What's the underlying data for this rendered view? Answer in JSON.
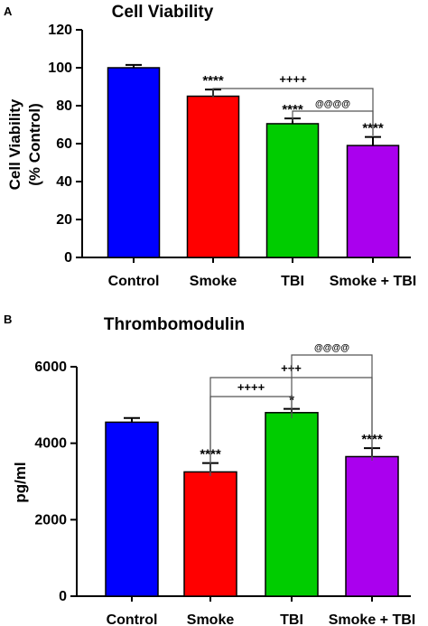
{
  "chart_data": [
    {
      "panel": "A",
      "type": "bar",
      "title": "Cell Viability",
      "ylabel": [
        "Cell Viability",
        "(% Control)"
      ],
      "xlabel": "",
      "categories": [
        "Control",
        "Smoke",
        "TBI",
        "Smoke + TBI"
      ],
      "values": [
        100,
        85,
        70.5,
        59
      ],
      "errors": [
        1.5,
        3.5,
        2.8,
        4.5
      ],
      "colors": [
        "#0000ff",
        "#ff0000",
        "#00cc00",
        "#aa00ee"
      ],
      "ylim": [
        0,
        120
      ],
      "yticks": [
        0,
        20,
        40,
        60,
        80,
        100,
        120
      ],
      "bar_labels": [
        "",
        "****",
        "****",
        "****"
      ],
      "comparisons": [
        {
          "from": 1,
          "to": 3,
          "label": "++++"
        },
        {
          "from": 2,
          "to": 3,
          "label": "@@@@"
        }
      ]
    },
    {
      "panel": "B",
      "type": "bar",
      "title": "Thrombomodulin",
      "ylabel": [
        "pg/ml"
      ],
      "xlabel": "",
      "categories": [
        "Control",
        "Smoke",
        "TBI",
        "Smoke + TBI"
      ],
      "values": [
        4550,
        3250,
        4800,
        3650
      ],
      "errors": [
        110,
        230,
        100,
        220
      ],
      "colors": [
        "#0000ff",
        "#ff0000",
        "#00cc00",
        "#aa00ee"
      ],
      "ylim": [
        0,
        6000
      ],
      "yticks": [
        0,
        2000,
        4000,
        6000
      ],
      "bar_labels": [
        "",
        "****",
        "*",
        "****"
      ],
      "comparisons": [
        {
          "from": 1,
          "to": 2,
          "label": "++++"
        },
        {
          "from": 1,
          "to": 3,
          "label": "+++"
        },
        {
          "from": 2,
          "to": 3,
          "label": "@@@@"
        }
      ]
    }
  ]
}
